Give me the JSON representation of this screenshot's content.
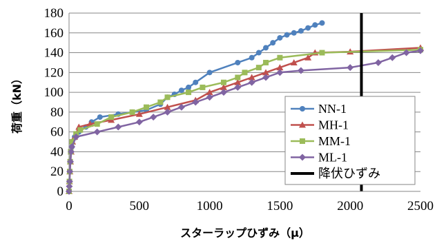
{
  "chart_data": {
    "type": "line",
    "xlabel": "スターラップひずみ（μ）",
    "ylabel": "荷重（kN）",
    "xlim": [
      0,
      2500
    ],
    "ylim": [
      0,
      180
    ],
    "xticks": [
      "0",
      "500",
      "1000",
      "1500",
      "2000",
      "2500"
    ],
    "yticks": [
      "0",
      "20",
      "40",
      "60",
      "80",
      "100",
      "120",
      "140",
      "160",
      "180"
    ],
    "grid": "horizontal",
    "legend": "right",
    "series": [
      {
        "name": "NN-1",
        "color": "#4f81bd",
        "marker": "circle",
        "points": [
          [
            0,
            0
          ],
          [
            2,
            10
          ],
          [
            5,
            20
          ],
          [
            8,
            30
          ],
          [
            12,
            40
          ],
          [
            20,
            45
          ],
          [
            40,
            55
          ],
          [
            70,
            60
          ],
          [
            120,
            65
          ],
          [
            160,
            70
          ],
          [
            220,
            75
          ],
          [
            350,
            78
          ],
          [
            450,
            80
          ],
          [
            550,
            82
          ],
          [
            650,
            88
          ],
          [
            700,
            95
          ],
          [
            750,
            98
          ],
          [
            800,
            102
          ],
          [
            850,
            105
          ],
          [
            900,
            110
          ],
          [
            1000,
            120
          ],
          [
            1200,
            130
          ],
          [
            1300,
            135
          ],
          [
            1350,
            140
          ],
          [
            1400,
            145
          ],
          [
            1450,
            150
          ],
          [
            1500,
            155
          ],
          [
            1550,
            158
          ],
          [
            1600,
            160
          ],
          [
            1650,
            162
          ],
          [
            1700,
            165
          ],
          [
            1750,
            168
          ],
          [
            1800,
            170
          ]
        ]
      },
      {
        "name": "MH-1",
        "color": "#c0504d",
        "marker": "triangle",
        "points": [
          [
            0,
            0
          ],
          [
            3,
            10
          ],
          [
            6,
            20
          ],
          [
            10,
            30
          ],
          [
            15,
            40
          ],
          [
            25,
            50
          ],
          [
            40,
            55
          ],
          [
            70,
            65
          ],
          [
            150,
            68
          ],
          [
            300,
            72
          ],
          [
            500,
            78
          ],
          [
            700,
            85
          ],
          [
            900,
            92
          ],
          [
            1000,
            100
          ],
          [
            1100,
            105
          ],
          [
            1200,
            110
          ],
          [
            1300,
            115
          ],
          [
            1400,
            120
          ],
          [
            1500,
            125
          ],
          [
            1600,
            130
          ],
          [
            1700,
            135
          ],
          [
            1750,
            140
          ],
          [
            2000,
            141
          ],
          [
            2500,
            145
          ]
        ]
      },
      {
        "name": "MM-1",
        "color": "#9bbb59",
        "marker": "square",
        "points": [
          [
            0,
            0
          ],
          [
            3,
            10
          ],
          [
            5,
            20
          ],
          [
            8,
            30
          ],
          [
            12,
            40
          ],
          [
            20,
            50
          ],
          [
            50,
            58
          ],
          [
            80,
            62
          ],
          [
            200,
            68
          ],
          [
            300,
            75
          ],
          [
            450,
            80
          ],
          [
            550,
            85
          ],
          [
            650,
            90
          ],
          [
            700,
            95
          ],
          [
            850,
            100
          ],
          [
            950,
            105
          ],
          [
            1100,
            110
          ],
          [
            1200,
            115
          ],
          [
            1250,
            120
          ],
          [
            1350,
            125
          ],
          [
            1400,
            130
          ],
          [
            1500,
            135
          ],
          [
            1800,
            140
          ],
          [
            2500,
            143
          ]
        ]
      },
      {
        "name": "ML-1",
        "color": "#8064a2",
        "marker": "diamond",
        "points": [
          [
            0,
            0
          ],
          [
            2,
            5
          ],
          [
            4,
            10
          ],
          [
            6,
            20
          ],
          [
            10,
            30
          ],
          [
            15,
            40
          ],
          [
            20,
            45
          ],
          [
            50,
            55
          ],
          [
            200,
            60
          ],
          [
            350,
            65
          ],
          [
            500,
            70
          ],
          [
            600,
            75
          ],
          [
            700,
            80
          ],
          [
            800,
            85
          ],
          [
            900,
            90
          ],
          [
            1000,
            95
          ],
          [
            1100,
            100
          ],
          [
            1200,
            105
          ],
          [
            1300,
            110
          ],
          [
            1400,
            115
          ],
          [
            1500,
            120
          ],
          [
            1650,
            122
          ],
          [
            2000,
            125
          ],
          [
            2200,
            130
          ],
          [
            2300,
            135
          ],
          [
            2400,
            140
          ],
          [
            2500,
            142
          ]
        ]
      },
      {
        "name": "降伏ひずみ",
        "color": "#000000",
        "type": "vline",
        "x": 2080
      }
    ]
  }
}
